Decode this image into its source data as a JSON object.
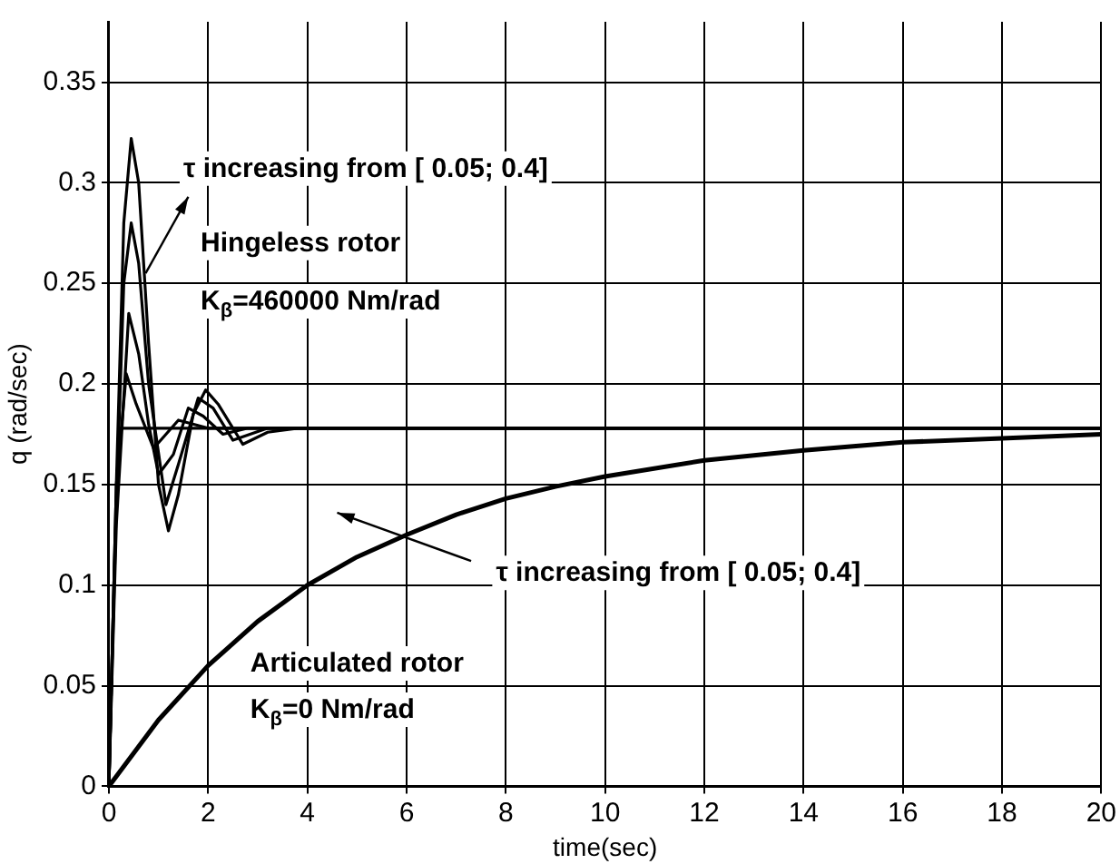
{
  "chart_data": {
    "type": "line",
    "xlabel": "time(sec)",
    "ylabel": "q (rad/sec)",
    "xlim": [
      0,
      20
    ],
    "xticks": [
      0,
      2,
      4,
      6,
      8,
      10,
      12,
      14,
      16,
      18,
      20
    ],
    "ylim": [
      0,
      0.38
    ],
    "yticks": [
      0,
      0.05,
      0.1,
      0.15,
      0.2,
      0.25,
      0.3,
      0.35
    ],
    "grid": true,
    "legend": false,
    "marker": "none",
    "line_style": "solid",
    "annotations": [
      "τ increasing from [ 0.05; 0.4]",
      "Hingeless rotor",
      "K$_{β}$=460000 Nm/rad",
      "τ increasing from [ 0.05; 0.4]",
      "Articulated rotor",
      "K$_{β}$=0 Nm/rad"
    ],
    "series": [
      {
        "color": "#000000",
        "x": [
          0,
          1,
          2,
          3,
          4,
          5,
          6,
          7,
          8,
          9,
          10,
          12,
          14,
          16,
          18,
          20
        ],
        "values": [
          0,
          0.033,
          0.06,
          0.082,
          0.1,
          0.114,
          0.125,
          0.135,
          0.143,
          0.149,
          0.154,
          0.162,
          0.167,
          0.171,
          0.173,
          0.175
        ]
      },
      {
        "color": "#000000",
        "x": [
          0,
          0.15,
          0.3,
          0.45,
          0.6,
          0.8,
          1.0,
          1.2,
          1.4,
          1.7,
          1.95,
          2.2,
          2.7,
          3.2,
          3.8,
          20
        ],
        "values": [
          0,
          0.15,
          0.28,
          0.322,
          0.3,
          0.22,
          0.15,
          0.127,
          0.145,
          0.185,
          0.197,
          0.19,
          0.17,
          0.176,
          0.178,
          0.178
        ]
      },
      {
        "color": "#000000",
        "x": [
          0,
          0.15,
          0.3,
          0.45,
          0.6,
          0.8,
          1.15,
          1.4,
          1.8,
          2.1,
          2.5,
          3.2,
          20
        ],
        "values": [
          0,
          0.14,
          0.25,
          0.28,
          0.26,
          0.2,
          0.14,
          0.16,
          0.193,
          0.188,
          0.172,
          0.178,
          0.178
        ]
      },
      {
        "color": "#000000",
        "x": [
          0,
          0.15,
          0.4,
          0.6,
          0.8,
          1.0,
          1.3,
          1.6,
          1.9,
          2.3,
          2.8,
          20
        ],
        "values": [
          0,
          0.13,
          0.235,
          0.215,
          0.18,
          0.155,
          0.165,
          0.188,
          0.184,
          0.175,
          0.178,
          0.178
        ]
      },
      {
        "color": "#000000",
        "x": [
          0,
          0.15,
          0.35,
          0.55,
          0.9,
          1.4,
          2.0,
          20
        ],
        "values": [
          0,
          0.15,
          0.205,
          0.19,
          0.168,
          0.182,
          0.178,
          0.178
        ]
      },
      {
        "color": "#000000",
        "x": [
          0,
          0.1,
          0.2,
          0.4,
          20
        ],
        "values": [
          0,
          0.1,
          0.178,
          0.178,
          0.178
        ]
      }
    ]
  }
}
